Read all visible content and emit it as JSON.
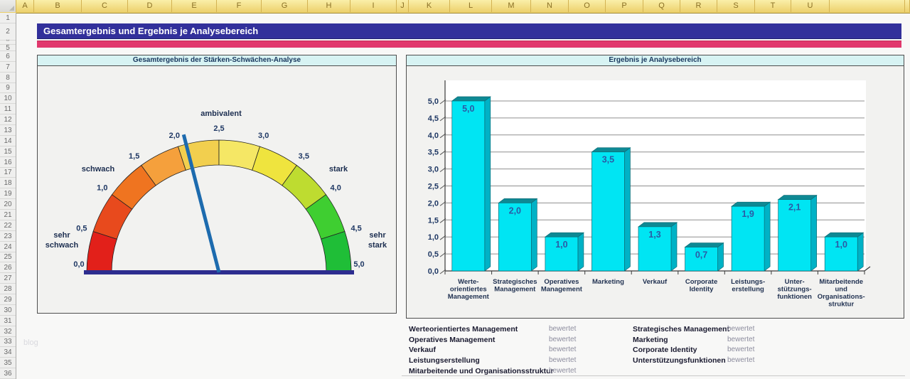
{
  "window": {
    "title_bar": "Gesamtergebnis und Ergebnis je Analysebereich"
  },
  "spreadsheet": {
    "column_letters": [
      "A",
      "B",
      "C",
      "D",
      "E",
      "F",
      "G",
      "H",
      "I",
      "J",
      "K",
      "L",
      "M",
      "N",
      "O",
      "P",
      "Q",
      "R",
      "S",
      "T",
      "U"
    ],
    "row_numbers": [
      "1",
      "2",
      "5",
      "6",
      "7",
      "8",
      "9",
      "10",
      "11",
      "12",
      "13",
      "14",
      "15",
      "16",
      "17",
      "18",
      "19",
      "20",
      "21",
      "22",
      "23",
      "24",
      "25",
      "26",
      "27",
      "28",
      "29",
      "30",
      "31",
      "32",
      "33",
      "34",
      "35",
      "36"
    ],
    "hidden_rows_marker": "**"
  },
  "accent_colors": {
    "title_bar_bg": "#32309b",
    "accent_bar": "#e1386d",
    "column_header_bg": "#f3dd7d",
    "chart_title_band_bg": "#d7f3f3"
  },
  "chart_data": [
    {
      "type": "gauge",
      "title": "Gesamtergebnis der Stärken-Schwächen-Analyse",
      "value": 2.1,
      "range": [
        0,
        5
      ],
      "tick_labels": [
        "0,0",
        "0,5",
        "1,0",
        "1,5",
        "2,0",
        "2,5",
        "3,0",
        "3,5",
        "4,0",
        "4,5",
        "5,0"
      ],
      "zone_labels": {
        "far_left": [
          "sehr",
          "schwach"
        ],
        "left": "schwach",
        "top": "ambivalent",
        "right": "stark",
        "far_right": [
          "sehr",
          "stark"
        ]
      },
      "segment_colors": [
        "#e2201a",
        "#e84a1d",
        "#ef7420",
        "#f5a03c",
        "#f2cf4e",
        "#f5e765",
        "#efe43e",
        "#bedc30",
        "#3fce31",
        "#1fbe37"
      ],
      "needle_color": "#1d6bae",
      "baseline_color": "#2d2d8f"
    },
    {
      "type": "bar",
      "title": "Ergebnis je Analysebereich",
      "categories": [
        [
          "Werte-",
          "orientiertes",
          "Management"
        ],
        [
          "Strategisches",
          "Management"
        ],
        [
          "Operatives",
          "Management"
        ],
        [
          "Marketing"
        ],
        [
          "Verkauf"
        ],
        [
          "Corporate",
          "Identity"
        ],
        [
          "Leistungs-",
          "erstellung"
        ],
        [
          "Unter-",
          "stützungs-",
          "funktionen"
        ],
        [
          "Mitarbeitende",
          "und",
          "Organisations-",
          "struktur"
        ]
      ],
      "values": [
        5.0,
        2.0,
        1.0,
        3.5,
        1.3,
        0.7,
        1.9,
        2.1,
        1.0
      ],
      "value_labels": [
        "5,0",
        "2,0",
        "1,0",
        "3,5",
        "1,3",
        "0,7",
        "1,9",
        "2,1",
        "1,0"
      ],
      "y_tick_labels": [
        "0,0",
        "0,5",
        "1,0",
        "1,5",
        "2,0",
        "2,5",
        "3,0",
        "3,5",
        "4,0",
        "4,5",
        "5,0"
      ],
      "ylim": [
        0,
        5
      ],
      "grid": true,
      "legend": "none",
      "bar_color": "#00e5f3",
      "bar_side_color": "#00b2c6",
      "bar_top_color": "#0e8994"
    }
  ],
  "status_table": {
    "left": [
      {
        "name": "Werteorientiertes Management",
        "status": "bewertet"
      },
      {
        "name": "Operatives Management",
        "status": "bewertet"
      },
      {
        "name": "Verkauf",
        "status": "bewertet"
      },
      {
        "name": "Leistungserstellung",
        "status": "bewertet"
      },
      {
        "name": "Mitarbeitende und Organisationsstruktur",
        "status": "bewertet"
      }
    ],
    "right": [
      {
        "name": "Strategisches Management",
        "status": "bewertet"
      },
      {
        "name": "Marketing",
        "status": "bewertet"
      },
      {
        "name": "Corporate Identity",
        "status": "bewertet"
      },
      {
        "name": "Unterstützungsfunktionen",
        "status": "bewertet"
      }
    ]
  },
  "watermark": "blog"
}
